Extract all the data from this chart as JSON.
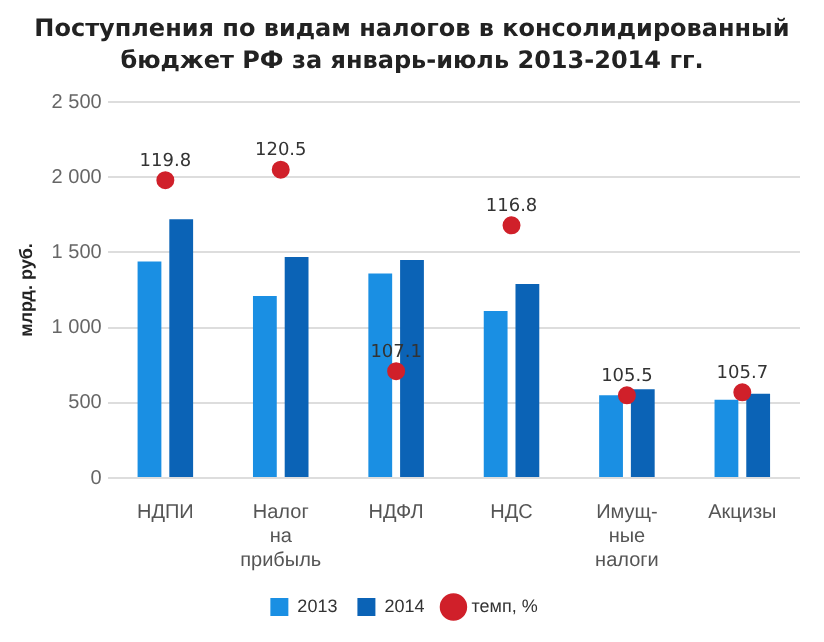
{
  "chart_data": {
    "type": "bar",
    "title": "Поступления по видам налогов в консолидированный бюджет РФ  за январь-июль 2013-2014 гг.",
    "ylabel": "млрд. руб.",
    "categories": [
      "НДПИ",
      "Налог на прибыль",
      "НДФЛ",
      "НДС",
      "Имущ-ные налоги",
      "Акцизы"
    ],
    "series": [
      {
        "name": "2013",
        "color": "#1a8fe3",
        "values": [
          1440,
          1210,
          1360,
          1110,
          550,
          520
        ]
      },
      {
        "name": "2014",
        "color": "#0b63b6",
        "values": [
          1720,
          1470,
          1450,
          1290,
          590,
          560
        ]
      },
      {
        "name": "темп, %",
        "type": "scatter",
        "axis": "y2",
        "color": "#d0202a",
        "marker": "circle",
        "x": [
          "НДПИ",
          "Налог на прибыль",
          "НДФЛ",
          "НДС",
          "Имущ-ные налоги",
          "Акцизы"
        ],
        "values": [
          119.8,
          120.5,
          107.1,
          116.8,
          105.5,
          105.7
        ],
        "value_labels": [
          "119.8",
          "120.5",
          "107.1",
          "116.8",
          "105.5",
          "105.7"
        ]
      }
    ],
    "ylim": [
      0,
      2500
    ],
    "yticks": [
      0,
      500,
      {
        "value": 1000,
        "label": "1 000"
      },
      {
        "value": 1500,
        "label": "1 500"
      },
      {
        "value": 2000,
        "label": "2 000"
      },
      {
        "value": 2500,
        "label": "2 500"
      }
    ],
    "y2lim": [
      100,
      125
    ],
    "grid": "y",
    "legend": "bottom"
  }
}
